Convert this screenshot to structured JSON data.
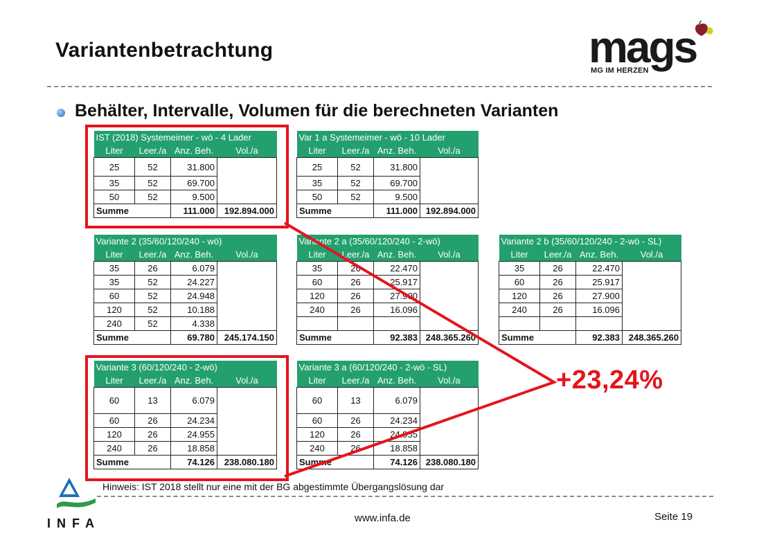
{
  "title": "Variantenbetrachtung",
  "bullet": "Behälter, Intervalle, Volumen für die berechneten Varianten",
  "logo": {
    "word": "mags",
    "tagline": "MG IM HERZEN"
  },
  "columns": [
    "Liter",
    "Leer./a",
    "Anz. Beh.",
    "Vol./a"
  ],
  "sum_label": "Summe",
  "tables": [
    {
      "title": "IST (2018) Systemeimer - wö - 4 Lader",
      "rows": [
        [
          "25",
          "52",
          "31.800"
        ],
        [
          "35",
          "52",
          "69.700"
        ],
        [
          "50",
          "52",
          "9.500"
        ]
      ],
      "sum_count": "111.000",
      "sum_vol": "192.894.000"
    },
    {
      "title": "Var 1 a Systemeimer - wö - 10 Lader",
      "rows": [
        [
          "25",
          "52",
          "31.800"
        ],
        [
          "35",
          "52",
          "69.700"
        ],
        [
          "50",
          "52",
          "9.500"
        ]
      ],
      "sum_count": "111.000",
      "sum_vol": "192.894.000"
    },
    {
      "title": "Variante 2 (35/60/120/240 - wö)",
      "rows": [
        [
          "35",
          "26",
          "6.079"
        ],
        [
          "35",
          "52",
          "24.227"
        ],
        [
          "60",
          "52",
          "24.948"
        ],
        [
          "120",
          "52",
          "10.188"
        ],
        [
          "240",
          "52",
          "4.338"
        ]
      ],
      "sum_count": "69.780",
      "sum_vol": "245.174.150"
    },
    {
      "title": "Variante 2 a (35/60/120/240 - 2-wö)",
      "rows": [
        [
          "35",
          "26",
          "22.470"
        ],
        [
          "60",
          "26",
          "25.917"
        ],
        [
          "120",
          "26",
          "27.900"
        ],
        [
          "240",
          "26",
          "16.096"
        ],
        [
          "",
          "",
          ""
        ]
      ],
      "sum_count": "92.383",
      "sum_vol": "248.365.260"
    },
    {
      "title": "Variante 2 b (35/60/120/240 - 2-wö - SL)",
      "rows": [
        [
          "35",
          "26",
          "22.470"
        ],
        [
          "60",
          "26",
          "25.917"
        ],
        [
          "120",
          "26",
          "27.900"
        ],
        [
          "240",
          "26",
          "16.096"
        ],
        [
          "",
          "",
          ""
        ]
      ],
      "sum_count": "92.383",
      "sum_vol": "248.365.260"
    },
    {
      "title": "Variante 3 (60/120/240 - 2-wö)",
      "rows": [
        [
          "60",
          "13",
          "6.079"
        ],
        [
          "60",
          "26",
          "24.234"
        ],
        [
          "120",
          "26",
          "24.955"
        ],
        [
          "240",
          "26",
          "18.858"
        ]
      ],
      "sum_count": "74.126",
      "sum_vol": "238.080.180"
    },
    {
      "title": "Variante 3 a (60/120/240 - 2-wö - SL)",
      "rows": [
        [
          "60",
          "13",
          "6.079"
        ],
        [
          "60",
          "26",
          "24.234"
        ],
        [
          "120",
          "26",
          "24.955"
        ],
        [
          "240",
          "26",
          "18.858"
        ]
      ],
      "sum_count": "74.126",
      "sum_vol": "238.080.180"
    }
  ],
  "annotation": "+23,24%",
  "hint": "Hinweis: IST 2018 stellt nur eine mit der BG abgestimmte Übergangslösung dar",
  "footer": {
    "url": "www.infa.de",
    "page": "Seite 19",
    "infa": "INFA"
  },
  "colors": {
    "header_green": "#23a06e",
    "highlight_red": "#e4141d"
  }
}
